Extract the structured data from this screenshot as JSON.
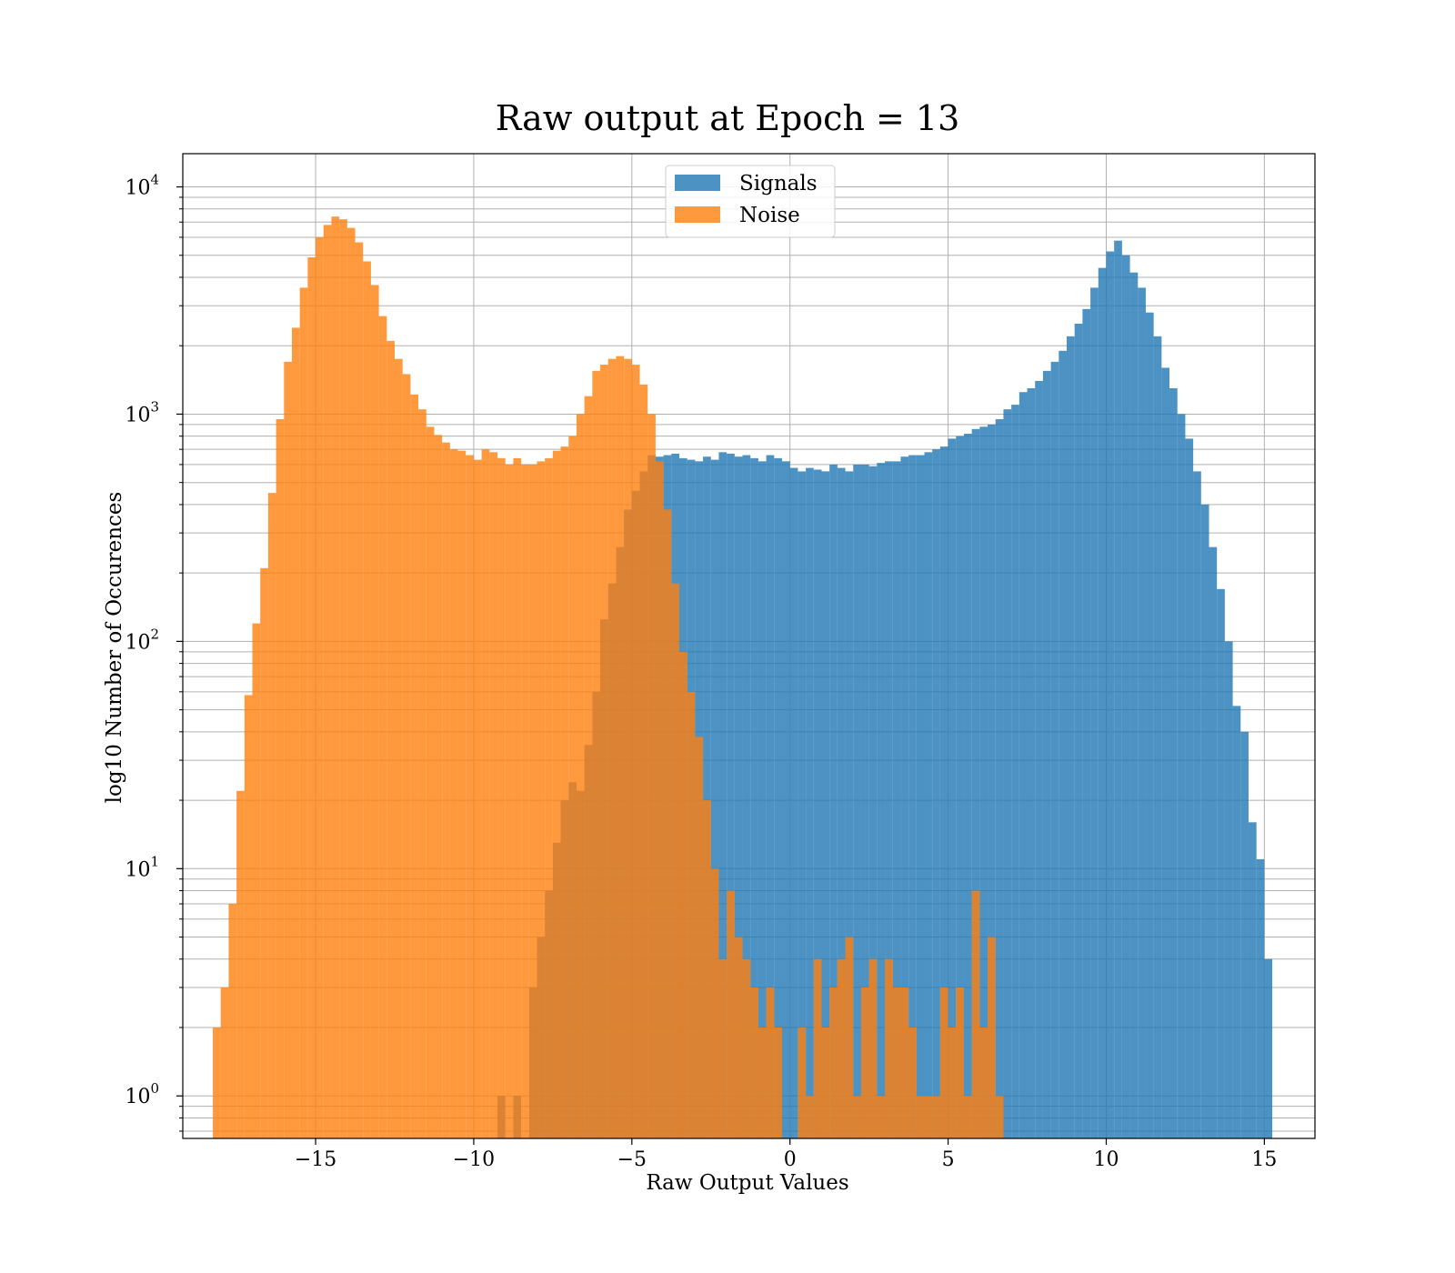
{
  "chart_data": {
    "type": "bar",
    "title": "Raw output at Epoch = 13",
    "xlabel": "Raw Output Values",
    "ylabel": "log10 Number of Occurences",
    "x_ticks": [
      {
        "value": -15,
        "label": "−15"
      },
      {
        "value": -10,
        "label": "−10"
      },
      {
        "value": -5,
        "label": "−5"
      },
      {
        "value": 0,
        "label": "0"
      },
      {
        "value": 5,
        "label": "5"
      },
      {
        "value": 10,
        "label": "10"
      },
      {
        "value": 15,
        "label": "15"
      }
    ],
    "y_ticks": [
      {
        "value": 1,
        "base": "10",
        "exp": "0"
      },
      {
        "value": 10,
        "base": "10",
        "exp": "1"
      },
      {
        "value": 100,
        "base": "10",
        "exp": "2"
      },
      {
        "value": 1000,
        "base": "10",
        "exp": "3"
      },
      {
        "value": 10000,
        "base": "10",
        "exp": "4"
      }
    ],
    "xlim": [
      -19.2,
      16.6
    ],
    "ylim": [
      0.65,
      14000
    ],
    "yscale": "log",
    "grid": true,
    "legend_position": "upper-center",
    "series": [
      {
        "name": "Signals",
        "color": "#1f77b4",
        "opacity": 0.8,
        "bins": [
          [
            -9.25,
            -9.0,
            1
          ],
          [
            -8.75,
            -8.5,
            1
          ],
          [
            -8.25,
            -8.0,
            3
          ],
          [
            -8.0,
            -7.75,
            5
          ],
          [
            -7.75,
            -7.5,
            8
          ],
          [
            -7.5,
            -7.25,
            13
          ],
          [
            -7.25,
            -7.0,
            20
          ],
          [
            -7.0,
            -6.75,
            24
          ],
          [
            -6.75,
            -6.5,
            22
          ],
          [
            -6.5,
            -6.25,
            35
          ],
          [
            -6.25,
            -6.0,
            60
          ],
          [
            -6.0,
            -5.75,
            125
          ],
          [
            -5.75,
            -5.5,
            180
          ],
          [
            -5.5,
            -5.25,
            260
          ],
          [
            -5.25,
            -5.0,
            380
          ],
          [
            -5.0,
            -4.75,
            460
          ],
          [
            -4.75,
            -4.5,
            560
          ],
          [
            -4.5,
            -4.25,
            660
          ],
          [
            -4.25,
            -4.0,
            650
          ],
          [
            -4.0,
            -3.75,
            660
          ],
          [
            -3.75,
            -3.5,
            670
          ],
          [
            -3.5,
            -3.25,
            640
          ],
          [
            -3.25,
            -3.0,
            630
          ],
          [
            -3.0,
            -2.75,
            620
          ],
          [
            -2.75,
            -2.5,
            650
          ],
          [
            -2.5,
            -2.25,
            630
          ],
          [
            -2.25,
            -2.0,
            680
          ],
          [
            -2.0,
            -1.75,
            670
          ],
          [
            -1.75,
            -1.5,
            650
          ],
          [
            -1.5,
            -1.25,
            660
          ],
          [
            -1.25,
            -1.0,
            640
          ],
          [
            -1.0,
            -0.75,
            620
          ],
          [
            -0.75,
            -0.5,
            660
          ],
          [
            -0.5,
            -0.25,
            640
          ],
          [
            -0.25,
            0.0,
            620
          ],
          [
            0.0,
            0.25,
            580
          ],
          [
            0.25,
            0.5,
            560
          ],
          [
            0.5,
            0.75,
            580
          ],
          [
            0.75,
            1.0,
            570
          ],
          [
            1.0,
            1.25,
            560
          ],
          [
            1.25,
            1.5,
            600
          ],
          [
            1.5,
            1.75,
            580
          ],
          [
            1.75,
            2.0,
            560
          ],
          [
            2.0,
            2.25,
            600
          ],
          [
            2.25,
            2.5,
            600
          ],
          [
            2.5,
            2.75,
            590
          ],
          [
            2.75,
            3.0,
            610
          ],
          [
            3.0,
            3.25,
            620
          ],
          [
            3.25,
            3.5,
            620
          ],
          [
            3.5,
            3.75,
            650
          ],
          [
            3.75,
            4.0,
            660
          ],
          [
            4.0,
            4.25,
            660
          ],
          [
            4.25,
            4.5,
            680
          ],
          [
            4.5,
            4.75,
            700
          ],
          [
            4.75,
            5.0,
            720
          ],
          [
            5.0,
            5.25,
            780
          ],
          [
            5.25,
            5.5,
            800
          ],
          [
            5.5,
            5.75,
            820
          ],
          [
            5.75,
            6.0,
            860
          ],
          [
            6.0,
            6.25,
            880
          ],
          [
            6.25,
            6.5,
            900
          ],
          [
            6.5,
            6.75,
            950
          ],
          [
            6.75,
            7.0,
            1050
          ],
          [
            7.0,
            7.25,
            1100
          ],
          [
            7.25,
            7.5,
            1250
          ],
          [
            7.5,
            7.75,
            1300
          ],
          [
            7.75,
            8.0,
            1400
          ],
          [
            8.0,
            8.25,
            1550
          ],
          [
            8.25,
            8.5,
            1700
          ],
          [
            8.5,
            8.75,
            1900
          ],
          [
            8.75,
            9.0,
            2200
          ],
          [
            9.0,
            9.25,
            2500
          ],
          [
            9.25,
            9.5,
            2900
          ],
          [
            9.5,
            9.75,
            3600
          ],
          [
            9.75,
            10.0,
            4400
          ],
          [
            10.0,
            10.25,
            5200
          ],
          [
            10.25,
            10.5,
            5800
          ],
          [
            10.5,
            10.75,
            5000
          ],
          [
            10.75,
            11.0,
            4200
          ],
          [
            11.0,
            11.25,
            3600
          ],
          [
            11.25,
            11.5,
            2800
          ],
          [
            11.5,
            11.75,
            2200
          ],
          [
            11.75,
            12.0,
            1600
          ],
          [
            12.0,
            12.25,
            1300
          ],
          [
            12.25,
            12.5,
            1000
          ],
          [
            12.5,
            12.75,
            780
          ],
          [
            12.75,
            13.0,
            560
          ],
          [
            13.0,
            13.25,
            400
          ],
          [
            13.25,
            13.5,
            260
          ],
          [
            13.5,
            13.75,
            170
          ],
          [
            13.75,
            14.0,
            100
          ],
          [
            14.0,
            14.25,
            52
          ],
          [
            14.25,
            14.5,
            40
          ],
          [
            14.5,
            14.75,
            16
          ],
          [
            14.75,
            15.0,
            11
          ],
          [
            15.0,
            15.25,
            4
          ]
        ]
      },
      {
        "name": "Noise",
        "color": "#ff7f0e",
        "opacity": 0.8,
        "bins": [
          [
            -18.25,
            -18.0,
            2
          ],
          [
            -18.0,
            -17.75,
            3
          ],
          [
            -17.75,
            -17.5,
            7
          ],
          [
            -17.5,
            -17.25,
            22
          ],
          [
            -17.25,
            -17.0,
            58
          ],
          [
            -17.0,
            -16.75,
            120
          ],
          [
            -16.75,
            -16.5,
            210
          ],
          [
            -16.5,
            -16.25,
            450
          ],
          [
            -16.25,
            -16.0,
            950
          ],
          [
            -16.0,
            -15.75,
            1700
          ],
          [
            -15.75,
            -15.5,
            2400
          ],
          [
            -15.5,
            -15.25,
            3600
          ],
          [
            -15.25,
            -15.0,
            4900
          ],
          [
            -15.0,
            -14.75,
            6000
          ],
          [
            -14.75,
            -14.5,
            6800
          ],
          [
            -14.5,
            -14.25,
            7400
          ],
          [
            -14.25,
            -14.0,
            7200
          ],
          [
            -14.0,
            -13.75,
            6600
          ],
          [
            -13.75,
            -13.5,
            5700
          ],
          [
            -13.5,
            -13.25,
            4700
          ],
          [
            -13.25,
            -13.0,
            3700
          ],
          [
            -13.0,
            -12.75,
            2700
          ],
          [
            -12.75,
            -12.5,
            2100
          ],
          [
            -12.5,
            -12.25,
            1750
          ],
          [
            -12.25,
            -12.0,
            1500
          ],
          [
            -12.0,
            -11.75,
            1220
          ],
          [
            -11.75,
            -11.5,
            1050
          ],
          [
            -11.5,
            -11.25,
            880
          ],
          [
            -11.25,
            -11.0,
            810
          ],
          [
            -11.0,
            -10.75,
            750
          ],
          [
            -10.75,
            -10.5,
            700
          ],
          [
            -10.5,
            -10.25,
            690
          ],
          [
            -10.25,
            -10.0,
            660
          ],
          [
            -10.0,
            -9.75,
            630
          ],
          [
            -9.75,
            -9.5,
            700
          ],
          [
            -9.5,
            -9.25,
            680
          ],
          [
            -9.25,
            -9.0,
            640
          ],
          [
            -9.0,
            -8.75,
            600
          ],
          [
            -8.75,
            -8.5,
            640
          ],
          [
            -8.5,
            -8.25,
            600
          ],
          [
            -8.25,
            -8.0,
            600
          ],
          [
            -8.0,
            -7.75,
            620
          ],
          [
            -7.75,
            -7.5,
            640
          ],
          [
            -7.5,
            -7.25,
            690
          ],
          [
            -7.25,
            -7.0,
            720
          ],
          [
            -7.0,
            -6.75,
            800
          ],
          [
            -6.75,
            -6.5,
            1000
          ],
          [
            -6.5,
            -6.25,
            1200
          ],
          [
            -6.25,
            -6.0,
            1550
          ],
          [
            -6.0,
            -5.75,
            1650
          ],
          [
            -5.75,
            -5.5,
            1750
          ],
          [
            -5.5,
            -5.25,
            1800
          ],
          [
            -5.25,
            -5.0,
            1750
          ],
          [
            -5.0,
            -4.75,
            1650
          ],
          [
            -4.75,
            -4.5,
            1350
          ],
          [
            -4.5,
            -4.25,
            1000
          ],
          [
            -4.25,
            -4.0,
            620
          ],
          [
            -4.0,
            -3.75,
            380
          ],
          [
            -3.75,
            -3.5,
            180
          ],
          [
            -3.5,
            -3.25,
            90
          ],
          [
            -3.25,
            -3.0,
            60
          ],
          [
            -3.0,
            -2.75,
            38
          ],
          [
            -2.75,
            -2.5,
            20
          ],
          [
            -2.5,
            -2.25,
            10
          ],
          [
            -2.25,
            -2.0,
            4
          ],
          [
            -2.0,
            -1.75,
            8
          ],
          [
            -1.75,
            -1.5,
            5
          ],
          [
            -1.5,
            -1.25,
            4
          ],
          [
            -1.25,
            -1.0,
            3
          ],
          [
            -1.0,
            -0.75,
            2
          ],
          [
            -0.75,
            -0.5,
            3
          ],
          [
            -0.5,
            -0.25,
            2
          ],
          [
            0.25,
            0.5,
            2
          ],
          [
            0.5,
            0.75,
            1
          ],
          [
            0.75,
            1.0,
            4
          ],
          [
            1.0,
            1.25,
            2
          ],
          [
            1.25,
            1.5,
            3
          ],
          [
            1.5,
            1.75,
            4
          ],
          [
            1.75,
            2.0,
            5
          ],
          [
            2.0,
            2.25,
            1
          ],
          [
            2.25,
            2.5,
            3
          ],
          [
            2.5,
            2.75,
            4
          ],
          [
            2.75,
            3.0,
            1
          ],
          [
            3.0,
            3.25,
            4
          ],
          [
            3.25,
            3.5,
            3
          ],
          [
            3.5,
            3.75,
            3
          ],
          [
            3.75,
            4.0,
            2
          ],
          [
            4.0,
            4.25,
            1
          ],
          [
            4.25,
            4.5,
            1
          ],
          [
            4.5,
            4.75,
            1
          ],
          [
            4.75,
            5.0,
            3
          ],
          [
            5.0,
            5.25,
            2
          ],
          [
            5.25,
            5.5,
            3
          ],
          [
            5.5,
            5.75,
            1
          ],
          [
            5.75,
            6.0,
            8
          ],
          [
            6.0,
            6.25,
            2
          ],
          [
            6.25,
            6.5,
            5
          ],
          [
            6.5,
            6.75,
            1
          ]
        ]
      }
    ]
  }
}
